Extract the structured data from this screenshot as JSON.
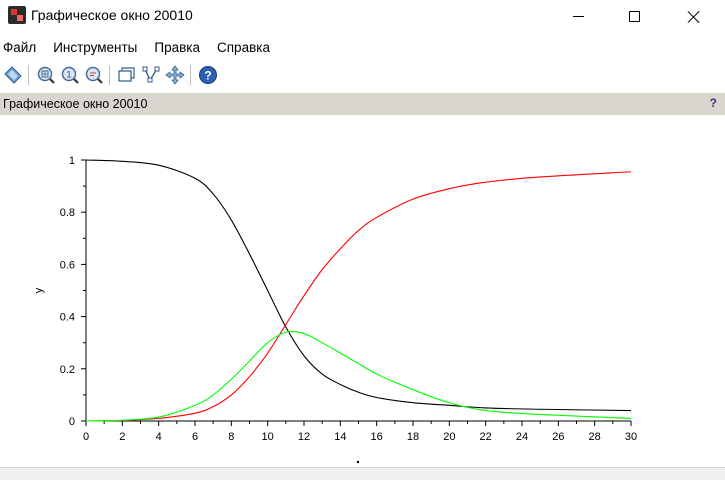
{
  "window": {
    "title": "Графическое окно 20010",
    "icon": "scilab-figure-icon"
  },
  "menu": {
    "items": [
      "Файл",
      "Инструменты",
      "Правка",
      "Справка"
    ]
  },
  "toolbar": {
    "icons": [
      "rotate-icon",
      "zoom-in-icon",
      "zoom-original-icon",
      "zoom-icon",
      "datatip-icon",
      "polyline-edit-icon",
      "pan-icon",
      "help-icon"
    ]
  },
  "panel": {
    "title": "Графическое окно 20010",
    "help_glyph": "?"
  },
  "chart_data": {
    "type": "line",
    "xlim": [
      0,
      30
    ],
    "ylim": [
      0,
      1
    ],
    "ylabel": "y",
    "x_ticks": [
      "0",
      "2",
      "4",
      "6",
      "8",
      "10",
      "12",
      "14",
      "16",
      "18",
      "20",
      "22",
      "24",
      "26",
      "28",
      "30"
    ],
    "y_ticks": [
      "0",
      "0.2",
      "0.4",
      "0.6",
      "0.8",
      "1"
    ],
    "grid": false,
    "series": [
      {
        "color": "#000000",
        "x": [
          0,
          2,
          4,
          6,
          7,
          8,
          9,
          10,
          11,
          12,
          13,
          14,
          15,
          16,
          18,
          20,
          22,
          25,
          30
        ],
        "y": [
          1.0,
          0.995,
          0.98,
          0.93,
          0.87,
          0.77,
          0.64,
          0.5,
          0.36,
          0.25,
          0.18,
          0.14,
          0.11,
          0.09,
          0.07,
          0.06,
          0.05,
          0.045,
          0.04
        ]
      },
      {
        "color": "#ff0000",
        "x": [
          0,
          2,
          4,
          6,
          7,
          8,
          9,
          10,
          11,
          12,
          13,
          14,
          15,
          16,
          18,
          20,
          22,
          25,
          30
        ],
        "y": [
          0.0,
          0.002,
          0.01,
          0.03,
          0.055,
          0.1,
          0.17,
          0.26,
          0.37,
          0.48,
          0.58,
          0.66,
          0.73,
          0.78,
          0.85,
          0.89,
          0.915,
          0.935,
          0.955
        ]
      },
      {
        "color": "#00ff00",
        "x": [
          0,
          2,
          4,
          6,
          7,
          8,
          9,
          10,
          11,
          12,
          13,
          14,
          15,
          16,
          18,
          20,
          22,
          25,
          30
        ],
        "y": [
          0.0,
          0.003,
          0.015,
          0.06,
          0.1,
          0.16,
          0.23,
          0.3,
          0.34,
          0.335,
          0.3,
          0.26,
          0.22,
          0.18,
          0.12,
          0.07,
          0.04,
          0.025,
          0.01
        ]
      }
    ]
  }
}
